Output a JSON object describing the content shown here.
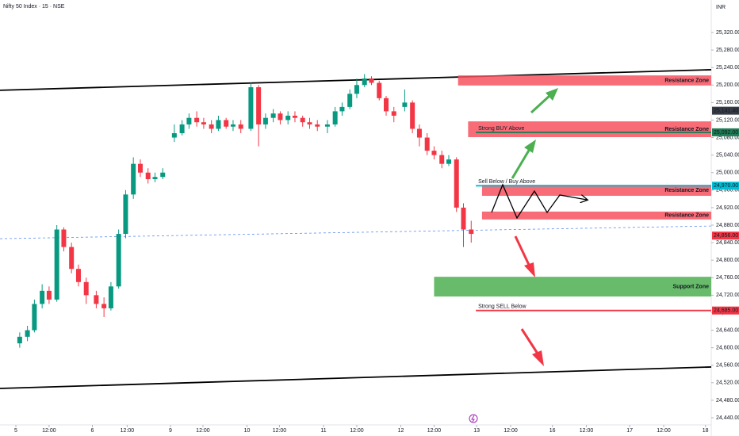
{
  "chart_data": {
    "type": "candlestick",
    "title": "Nifty 50 Index · 15 · NSE",
    "currency": "INR",
    "up_color": "#089981",
    "down_color": "#f23645",
    "xlim": [
      -0.205,
      8.995
    ],
    "xticks": [
      {
        "value": 0,
        "label": "5"
      },
      {
        "value": 0.43,
        "label": "12:00"
      },
      {
        "value": 0.99,
        "label": "6"
      },
      {
        "value": 1.44,
        "label": "12:00"
      },
      {
        "value": 2,
        "label": "9"
      },
      {
        "value": 2.42,
        "label": "12:00"
      },
      {
        "value": 2.99,
        "label": "10"
      },
      {
        "value": 3.41,
        "label": "12:00"
      },
      {
        "value": 3.98,
        "label": "11"
      },
      {
        "value": 4.41,
        "label": "12:00"
      },
      {
        "value": 4.98,
        "label": "12"
      },
      {
        "value": 5.41,
        "label": "12:00"
      },
      {
        "value": 5.96,
        "label": "13"
      },
      {
        "value": 6.4,
        "label": "12:00"
      },
      {
        "value": 6.94,
        "label": "16"
      },
      {
        "value": 7.38,
        "label": "12:00"
      },
      {
        "value": 7.94,
        "label": "17"
      },
      {
        "value": 8.38,
        "label": "12:00"
      },
      {
        "value": 8.92,
        "label": "18"
      }
    ],
    "ylim": [
      24416,
      25342
    ],
    "yticks": [
      {
        "value": 24440,
        "label": "24,440.00"
      },
      {
        "value": 24480,
        "label": "24,480.00"
      },
      {
        "value": 24520,
        "label": "24,520.00"
      },
      {
        "value": 24560,
        "label": "24,560.00"
      },
      {
        "value": 24600,
        "label": "24,600.00"
      },
      {
        "value": 24640,
        "label": "24,640.00"
      },
      {
        "value": 24680,
        "label": "24,680.00"
      },
      {
        "value": 24720,
        "label": "24,720.00"
      },
      {
        "value": 24760,
        "label": "24,760.00"
      },
      {
        "value": 24800,
        "label": "24,800.00"
      },
      {
        "value": 24840,
        "label": "24,840.00"
      },
      {
        "value": 24880,
        "label": "24,880.00"
      },
      {
        "value": 24920,
        "label": "24,920.00"
      },
      {
        "value": 24960,
        "label": "24,960.00"
      },
      {
        "value": 25000,
        "label": "25,000.00"
      },
      {
        "value": 25040,
        "label": "25,040.00"
      },
      {
        "value": 25080,
        "label": "25,080.00"
      },
      {
        "value": 25120,
        "label": "25,120.00"
      },
      {
        "value": 25160,
        "label": "25,160.00"
      },
      {
        "value": 25200,
        "label": "25,200.00"
      },
      {
        "value": 25240,
        "label": "25,240.00"
      },
      {
        "value": 25280,
        "label": "25,280.00"
      },
      {
        "value": 25320,
        "label": "25,320.00"
      }
    ],
    "x": [
      0.05,
      0.15,
      0.24,
      0.34,
      0.43,
      0.53,
      0.62,
      0.72,
      0.81,
      0.91,
      1.04,
      1.14,
      1.23,
      1.33,
      1.42,
      1.52,
      1.61,
      1.71,
      1.8,
      1.9,
      2.05,
      2.15,
      2.24,
      2.34,
      2.43,
      2.53,
      2.62,
      2.72,
      2.81,
      2.91,
      3.04,
      3.14,
      3.23,
      3.33,
      3.42,
      3.52,
      3.61,
      3.71,
      3.8,
      3.9,
      4.03,
      4.13,
      4.22,
      4.32,
      4.41,
      4.51,
      4.6,
      4.7,
      4.79,
      4.89,
      5.03,
      5.13,
      5.22,
      5.32,
      5.41,
      5.51,
      5.6,
      5.7,
      5.79,
      5.89
    ],
    "open": [
      24610,
      24625,
      24640,
      24700,
      24730,
      24710,
      24870,
      24830,
      24780,
      24750,
      24720,
      24700,
      24690,
      24740,
      24860,
      24950,
      25020,
      25000,
      24985,
      24990,
      25080,
      25090,
      25110,
      25125,
      25115,
      25110,
      25100,
      25120,
      25105,
      25110,
      25100,
      25195,
      25110,
      25125,
      25135,
      25120,
      25130,
      25125,
      25115,
      25110,
      25105,
      25110,
      25140,
      25150,
      25180,
      25200,
      25215,
      25205,
      25170,
      25140,
      25150,
      25160,
      25100,
      25080,
      25050,
      25040,
      25020,
      25030,
      24920,
      24870
    ],
    "high": [
      24635,
      24650,
      24710,
      24745,
      24740,
      24880,
      24875,
      24840,
      24790,
      24760,
      24730,
      24715,
      24750,
      24870,
      24960,
      25035,
      25030,
      25010,
      25000,
      25010,
      25110,
      25120,
      25135,
      25140,
      25125,
      25120,
      25130,
      25125,
      25120,
      25120,
      25205,
      25200,
      25135,
      25145,
      25140,
      25140,
      25140,
      25130,
      25125,
      25120,
      25120,
      25150,
      25160,
      25190,
      25215,
      25225,
      25220,
      25210,
      25175,
      25150,
      25190,
      25165,
      25110,
      25090,
      25060,
      25050,
      25040,
      25035,
      24930,
      24890
    ],
    "low": [
      24600,
      24615,
      24635,
      24690,
      24700,
      24705,
      24820,
      24770,
      24740,
      24700,
      24690,
      24670,
      24685,
      24735,
      24850,
      24940,
      24990,
      24975,
      24978,
      24985,
      25070,
      25085,
      25100,
      25105,
      25100,
      25090,
      25095,
      25100,
      25095,
      25090,
      25095,
      25060,
      25100,
      25115,
      25110,
      25110,
      25115,
      25105,
      25100,
      25095,
      25090,
      25105,
      25130,
      25145,
      25170,
      25195,
      25200,
      25165,
      25130,
      25115,
      25140,
      25090,
      25060,
      25040,
      25030,
      25010,
      25015,
      24910,
      24830,
      24840
    ],
    "close": [
      24625,
      24640,
      24700,
      24730,
      24710,
      24870,
      24830,
      24780,
      24750,
      24720,
      24700,
      24690,
      24740,
      24860,
      24950,
      25020,
      25000,
      24985,
      24990,
      25000,
      25090,
      25110,
      25125,
      25115,
      25110,
      25100,
      25120,
      25105,
      25110,
      25100,
      25195,
      25110,
      25125,
      25135,
      25120,
      25130,
      25125,
      25115,
      25110,
      25105,
      25110,
      25140,
      25150,
      25180,
      25200,
      25215,
      25205,
      25170,
      25140,
      25130,
      25160,
      25100,
      25080,
      25050,
      25040,
      25020,
      25030,
      24920,
      24870,
      24860
    ],
    "trendlines": [
      {
        "x": [
          -0.205,
          8.995
        ],
        "y": [
          25188,
          25235
        ],
        "color": "#000000",
        "dashed": false
      },
      {
        "x": [
          -0.205,
          8.995
        ],
        "y": [
          24507,
          24556
        ],
        "color": "#000000",
        "dashed": false
      },
      {
        "x": [
          -0.205,
          8.995
        ],
        "y": [
          24849,
          24878
        ],
        "color": "#5b8def",
        "dashed": true
      }
    ],
    "zones": [
      {
        "label": "Resistance Zone",
        "top": 25222,
        "bottom": 25199,
        "x_start": 5.72,
        "color": "#f7525f"
      },
      {
        "label": "Resistance Zone",
        "top": 25117,
        "bottom": 25081,
        "x_start": 5.85,
        "color": "#f7525f"
      },
      {
        "label": "Resistance Zone",
        "top": 24972,
        "bottom": 24947,
        "x_start": 6.03,
        "color": "#f7525f"
      },
      {
        "label": "Resistance Zone",
        "top": 24911,
        "bottom": 24893,
        "x_start": 6.03,
        "color": "#f7525f"
      },
      {
        "label": "Support Zone",
        "top": 24762,
        "bottom": 24717,
        "x_start": 5.41,
        "color": "#4caf50"
      }
    ],
    "levels": [
      {
        "name": "Strong BUY Above",
        "value": 25092,
        "value_label": "25,092.00",
        "x_start": 5.95,
        "color": "#1e7d55"
      },
      {
        "name": "Sell Below / Buy Above",
        "value": 24970,
        "value_label": "24,970.00",
        "x_start": 5.95,
        "color": "#00bcd4"
      },
      {
        "name": "Strong SELL Below",
        "value": 24685,
        "value_label": "24,685.00",
        "x_start": 5.95,
        "color": "#f23645"
      }
    ],
    "price_labels": [
      {
        "value": 25141.4,
        "label": "25,141.40",
        "color": "#363a45"
      },
      {
        "value": 24856,
        "label": "24,856.00",
        "color": "#f23645"
      }
    ]
  }
}
